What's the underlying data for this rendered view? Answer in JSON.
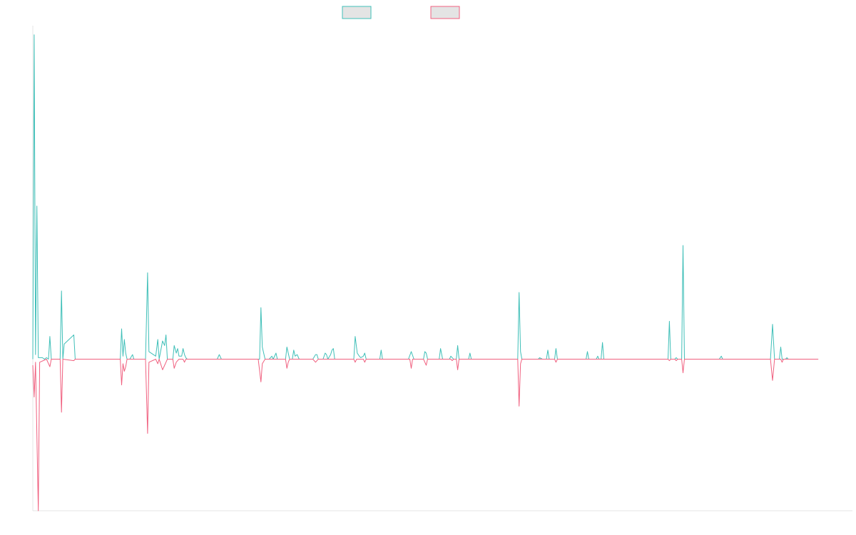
{
  "chart_data": {
    "type": "line",
    "title": "",
    "xlabel": "",
    "ylabel": "",
    "x_range": [
      0,
      1200
    ],
    "ylim": [
      -1,
      2.2
    ],
    "grid": false,
    "legend_position": "top-center",
    "colors": {
      "series_a": "#3fbfb8",
      "series_b": "#f0607f",
      "axis": "#e4e4e4",
      "legend_fill": "#e4e4e4"
    },
    "series": [
      {
        "key": "a",
        "color": "#3fbfb8",
        "points": [
          [
            0,
            0
          ],
          [
            2,
            2.14
          ],
          [
            4,
            0.03
          ],
          [
            6,
            1.01
          ],
          [
            8,
            0.01
          ],
          [
            12,
            0.01
          ],
          [
            14,
            0.01
          ],
          [
            17,
            0
          ],
          [
            20,
            0.01
          ],
          [
            23,
            0
          ],
          [
            25,
            0.15
          ],
          [
            27,
            0
          ],
          [
            29,
            0
          ],
          [
            31,
            0
          ],
          [
            33,
            0
          ],
          [
            36,
            0
          ],
          [
            40,
            0
          ],
          [
            42,
            0.45
          ],
          [
            44,
            0
          ],
          [
            46,
            0.1
          ],
          [
            60,
            0.16
          ],
          [
            62,
            0
          ],
          [
            100,
            0
          ],
          [
            128,
            0
          ],
          [
            130,
            0.2
          ],
          [
            132,
            0.02
          ],
          [
            134,
            0.13
          ],
          [
            136,
            0.04
          ],
          [
            138,
            0
          ],
          [
            140,
            0
          ],
          [
            142,
            0
          ],
          [
            146,
            0.03
          ],
          [
            148,
            0
          ],
          [
            165,
            0
          ],
          [
            168,
            0.57
          ],
          [
            170,
            0.05
          ],
          [
            180,
            0.02
          ],
          [
            183,
            0.13
          ],
          [
            185,
            0
          ],
          [
            190,
            0.12
          ],
          [
            193,
            0.09
          ],
          [
            195,
            0.16
          ],
          [
            197,
            0
          ],
          [
            205,
            0
          ],
          [
            207,
            0.09
          ],
          [
            210,
            0.04
          ],
          [
            212,
            0.07
          ],
          [
            214,
            0.02
          ],
          [
            218,
            0.02
          ],
          [
            220,
            0.07
          ],
          [
            222,
            0.03
          ],
          [
            224,
            0.01
          ],
          [
            226,
            0
          ],
          [
            240,
            0
          ],
          [
            270,
            0
          ],
          [
            273,
            0.03
          ],
          [
            276,
            0
          ],
          [
            330,
            0
          ],
          [
            332,
            0
          ],
          [
            334,
            0.34
          ],
          [
            336,
            0.08
          ],
          [
            340,
            0
          ],
          [
            346,
            0
          ],
          [
            350,
            0.02
          ],
          [
            352,
            0
          ],
          [
            356,
            0.04
          ],
          [
            358,
            0
          ],
          [
            370,
            0
          ],
          [
            372,
            0.08
          ],
          [
            374,
            0.04
          ],
          [
            376,
            0
          ],
          [
            380,
            0
          ],
          [
            382,
            0.06
          ],
          [
            384,
            0.02
          ],
          [
            387,
            0.03
          ],
          [
            390,
            0
          ],
          [
            410,
            0
          ],
          [
            414,
            0.03
          ],
          [
            416,
            0.03
          ],
          [
            418,
            0
          ],
          [
            425,
            0
          ],
          [
            428,
            0.04
          ],
          [
            430,
            0.03
          ],
          [
            432,
            0
          ],
          [
            436,
            0.03
          ],
          [
            438,
            0.06
          ],
          [
            440,
            0.07
          ],
          [
            442,
            0
          ],
          [
            460,
            0
          ],
          [
            462,
            0
          ],
          [
            464,
            0
          ],
          [
            470,
            0
          ],
          [
            472,
            0.15
          ],
          [
            475,
            0.04
          ],
          [
            478,
            0.02
          ],
          [
            480,
            0.01
          ],
          [
            484,
            0.02
          ],
          [
            486,
            0.04
          ],
          [
            488,
            0
          ],
          [
            508,
            0
          ],
          [
            510,
            0.06
          ],
          [
            512,
            0
          ],
          [
            550,
            0
          ],
          [
            554,
            0.05
          ],
          [
            558,
            0
          ],
          [
            572,
            0
          ],
          [
            574,
            0.05
          ],
          [
            576,
            0.04
          ],
          [
            578,
            0
          ],
          [
            595,
            0
          ],
          [
            597,
            0.07
          ],
          [
            600,
            0
          ],
          [
            610,
            0
          ],
          [
            612,
            0.02
          ],
          [
            616,
            0
          ],
          [
            620,
            0
          ],
          [
            622,
            0.09
          ],
          [
            624,
            0
          ],
          [
            638,
            0
          ],
          [
            640,
            0.04
          ],
          [
            642,
            0
          ],
          [
            700,
            0
          ],
          [
            710,
            0
          ],
          [
            712,
            0.44
          ],
          [
            714,
            0.05
          ],
          [
            716,
            0
          ],
          [
            740,
            0
          ],
          [
            742,
            0.01
          ],
          [
            746,
            0
          ],
          [
            752,
            0
          ],
          [
            754,
            0.06
          ],
          [
            756,
            0
          ],
          [
            764,
            0
          ],
          [
            766,
            0.07
          ],
          [
            768,
            0
          ],
          [
            810,
            0
          ],
          [
            812,
            0.05
          ],
          [
            814,
            0
          ],
          [
            825,
            0
          ],
          [
            827,
            0.02
          ],
          [
            829,
            0
          ],
          [
            832,
            0
          ],
          [
            834,
            0.11
          ],
          [
            836,
            0
          ],
          [
            930,
            0
          ],
          [
            932,
            0.25
          ],
          [
            934,
            0
          ],
          [
            940,
            0
          ],
          [
            942,
            0.01
          ],
          [
            944,
            0
          ],
          [
            950,
            0
          ],
          [
            952,
            0.75
          ],
          [
            954,
            0
          ],
          [
            1005,
            0
          ],
          [
            1008,
            0.02
          ],
          [
            1010,
            0
          ],
          [
            1025,
            0
          ],
          [
            1080,
            0
          ],
          [
            1083,
            0.23
          ],
          [
            1086,
            0
          ],
          [
            1093,
            0
          ],
          [
            1095,
            0.08
          ],
          [
            1097,
            0
          ],
          [
            1102,
            0
          ],
          [
            1104,
            0.01
          ],
          [
            1106,
            0
          ],
          [
            1150,
            0
          ]
        ]
      },
      {
        "key": "b",
        "color": "#f0607f",
        "points": [
          [
            0,
            -0.04
          ],
          [
            2,
            -0.25
          ],
          [
            4,
            -0.02
          ],
          [
            8,
            -1.0
          ],
          [
            10,
            -0.02
          ],
          [
            20,
            0
          ],
          [
            25,
            -0.05
          ],
          [
            27,
            0
          ],
          [
            30,
            0
          ],
          [
            40,
            0
          ],
          [
            42,
            -0.35
          ],
          [
            44,
            0
          ],
          [
            60,
            -0.01
          ],
          [
            62,
            0
          ],
          [
            128,
            0
          ],
          [
            130,
            -0.17
          ],
          [
            132,
            -0.03
          ],
          [
            134,
            -0.08
          ],
          [
            136,
            -0.05
          ],
          [
            138,
            0
          ],
          [
            142,
            0
          ],
          [
            165,
            0
          ],
          [
            168,
            -0.49
          ],
          [
            170,
            -0.02
          ],
          [
            180,
            0
          ],
          [
            183,
            -0.03
          ],
          [
            185,
            0
          ],
          [
            190,
            -0.07
          ],
          [
            193,
            -0.04
          ],
          [
            195,
            -0.02
          ],
          [
            197,
            0
          ],
          [
            205,
            0
          ],
          [
            207,
            -0.06
          ],
          [
            210,
            -0.02
          ],
          [
            212,
            -0.01
          ],
          [
            214,
            0
          ],
          [
            220,
            0
          ],
          [
            222,
            -0.02
          ],
          [
            224,
            0
          ],
          [
            330,
            0
          ],
          [
            334,
            -0.15
          ],
          [
            336,
            -0.03
          ],
          [
            340,
            0
          ],
          [
            346,
            0
          ],
          [
            358,
            0
          ],
          [
            370,
            0
          ],
          [
            372,
            -0.06
          ],
          [
            374,
            -0.02
          ],
          [
            376,
            0
          ],
          [
            410,
            0
          ],
          [
            414,
            -0.02
          ],
          [
            416,
            -0.01
          ],
          [
            418,
            0
          ],
          [
            470,
            0
          ],
          [
            472,
            -0.02
          ],
          [
            474,
            0
          ],
          [
            484,
            0
          ],
          [
            486,
            -0.02
          ],
          [
            488,
            0
          ],
          [
            550,
            0
          ],
          [
            552,
            0
          ],
          [
            554,
            -0.06
          ],
          [
            556,
            0
          ],
          [
            572,
            0
          ],
          [
            576,
            -0.04
          ],
          [
            578,
            0
          ],
          [
            612,
            0
          ],
          [
            614,
            -0.01
          ],
          [
            616,
            0
          ],
          [
            620,
            0
          ],
          [
            622,
            -0.07
          ],
          [
            624,
            0
          ],
          [
            700,
            0
          ],
          [
            710,
            0
          ],
          [
            712,
            -0.31
          ],
          [
            714,
            -0.03
          ],
          [
            716,
            0
          ],
          [
            764,
            0
          ],
          [
            766,
            -0.02
          ],
          [
            768,
            0
          ],
          [
            930,
            0
          ],
          [
            932,
            -0.01
          ],
          [
            934,
            0
          ],
          [
            940,
            0
          ],
          [
            942,
            -0.01
          ],
          [
            944,
            0
          ],
          [
            950,
            0
          ],
          [
            952,
            -0.09
          ],
          [
            954,
            0
          ],
          [
            1080,
            0
          ],
          [
            1083,
            -0.14
          ],
          [
            1086,
            0
          ],
          [
            1095,
            0
          ],
          [
            1097,
            -0.02
          ],
          [
            1099,
            0
          ],
          [
            1150,
            0
          ]
        ]
      }
    ]
  }
}
